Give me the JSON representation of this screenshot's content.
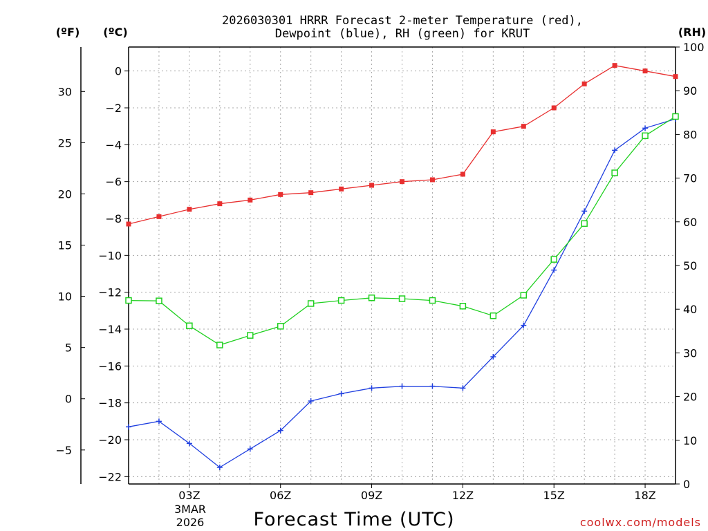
{
  "chart_data": {
    "type": "line",
    "title_line1": "2026030301 HRRR Forecast 2-meter Temperature (red),",
    "title_line2": "Dewpoint (blue), RH (green) for KRUT",
    "xlabel": "Forecast Time (UTC)",
    "credit": "coolwx.com/models",
    "unit_f": "(ºF)",
    "unit_c": "(ºC)",
    "unit_rh": "(RH)",
    "date_label_line1": "3MAR",
    "date_label_line2": "2026",
    "x_hours": [
      1,
      2,
      3,
      4,
      5,
      6,
      7,
      8,
      9,
      10,
      11,
      12,
      13,
      14,
      15,
      16,
      17,
      18,
      19
    ],
    "x_range": [
      1,
      19
    ],
    "x_ticks": [
      {
        "hour": 3,
        "label": "03Z"
      },
      {
        "hour": 6,
        "label": "06Z"
      },
      {
        "hour": 9,
        "label": "09Z"
      },
      {
        "hour": 12,
        "label": "12Z"
      },
      {
        "hour": 15,
        "label": "15Z"
      },
      {
        "hour": 18,
        "label": "18Z"
      }
    ],
    "y_celsius_range": [
      -22.4,
      1.3
    ],
    "y_celsius_ticks": [
      "0",
      "−2",
      "−4",
      "−6",
      "−8",
      "−10",
      "−12",
      "−14",
      "−16",
      "−18",
      "−20",
      "−22"
    ],
    "y_celsius_tick_values": [
      0,
      -2,
      -4,
      -6,
      -8,
      -10,
      -12,
      -14,
      -16,
      -18,
      -20,
      -22
    ],
    "y_fahrenheit_ticks": [
      "30",
      "25",
      "20",
      "15",
      "10",
      "5",
      "0",
      "−5"
    ],
    "y_fahrenheit_tick_values": [
      30,
      25,
      20,
      15,
      10,
      5,
      0,
      -5
    ],
    "y_rh_range": [
      0,
      100
    ],
    "y_rh_ticks": [
      "100",
      "90",
      "80",
      "70",
      "60",
      "50",
      "40",
      "30",
      "20",
      "10",
      "0"
    ],
    "y_rh_tick_values": [
      100,
      90,
      80,
      70,
      60,
      50,
      40,
      30,
      20,
      10,
      0
    ],
    "series": [
      {
        "name": "2-meter Temperature",
        "color": "#e83030",
        "axis": "celsius",
        "marker": "filled-square",
        "values": [
          -8.3,
          -7.9,
          -7.5,
          -7.2,
          -7.0,
          -6.7,
          -6.6,
          -6.4,
          -6.2,
          -6.0,
          -5.9,
          -5.6,
          -3.3,
          -3.0,
          -2.0,
          -0.7,
          0.3,
          0.0,
          -0.3
        ]
      },
      {
        "name": "Dewpoint",
        "color": "#2040e0",
        "axis": "celsius",
        "marker": "plus",
        "values": [
          -19.3,
          -19.0,
          -20.2,
          -21.5,
          -20.5,
          -19.5,
          -17.9,
          -17.5,
          -17.2,
          -17.1,
          -17.1,
          -17.2,
          -15.5,
          -13.8,
          -10.8,
          -7.6,
          -4.3,
          -3.1,
          -2.6
        ]
      },
      {
        "name": "RH",
        "color": "#20d020",
        "axis": "rh",
        "marker": "open-square",
        "values": [
          42.0,
          41.9,
          36.2,
          31.8,
          34.0,
          36.1,
          41.3,
          42.0,
          42.6,
          42.4,
          42.0,
          40.7,
          38.5,
          43.2,
          51.4,
          59.6,
          71.2,
          79.7,
          84.1
        ]
      }
    ]
  }
}
